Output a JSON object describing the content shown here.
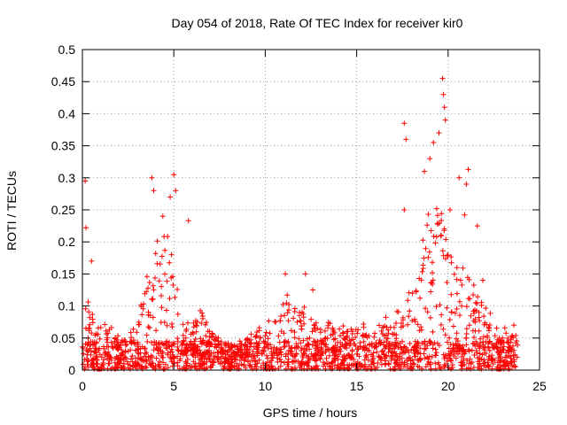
{
  "chart_data": {
    "type": "scatter",
    "title": "Day 054 of 2018, Rate Of TEC Index for receiver kir0",
    "xlabel": "GPS time / hours",
    "ylabel": "ROTI / TECUs",
    "xlim": [
      0,
      25
    ],
    "ylim": [
      0,
      0.5
    ],
    "xticks": [
      0,
      5,
      10,
      15,
      20,
      25
    ],
    "yticks": [
      0,
      0.05,
      0.1,
      0.15,
      0.2,
      0.25,
      0.3,
      0.35,
      0.4,
      0.45,
      0.5
    ],
    "xtick_labels": [
      "0",
      "5",
      "10",
      "15",
      "20",
      "25"
    ],
    "ytick_labels": [
      "0",
      "0.05",
      "0.1",
      "0.15",
      "0.2",
      "0.25",
      "0.3",
      "0.35",
      "0.4",
      "0.45",
      "0.5"
    ],
    "grid": true,
    "marker": "+",
    "color": "#ff0000",
    "data_range_hours": [
      0,
      23.8
    ],
    "notable_points": [
      {
        "x": 0.15,
        "y": 0.295
      },
      {
        "x": 0.2,
        "y": 0.222
      },
      {
        "x": 0.5,
        "y": 0.17
      },
      {
        "x": 3.8,
        "y": 0.3
      },
      {
        "x": 3.9,
        "y": 0.28
      },
      {
        "x": 4.4,
        "y": 0.24
      },
      {
        "x": 4.8,
        "y": 0.27
      },
      {
        "x": 5.0,
        "y": 0.305
      },
      {
        "x": 5.1,
        "y": 0.28
      },
      {
        "x": 5.8,
        "y": 0.233
      },
      {
        "x": 11.1,
        "y": 0.15
      },
      {
        "x": 12.2,
        "y": 0.15
      },
      {
        "x": 12.6,
        "y": 0.125
      },
      {
        "x": 17.6,
        "y": 0.385
      },
      {
        "x": 17.7,
        "y": 0.36
      },
      {
        "x": 17.6,
        "y": 0.25
      },
      {
        "x": 18.7,
        "y": 0.31
      },
      {
        "x": 19.0,
        "y": 0.33
      },
      {
        "x": 19.2,
        "y": 0.355
      },
      {
        "x": 19.5,
        "y": 0.37
      },
      {
        "x": 19.7,
        "y": 0.455
      },
      {
        "x": 19.75,
        "y": 0.43
      },
      {
        "x": 19.8,
        "y": 0.41
      },
      {
        "x": 19.85,
        "y": 0.39
      },
      {
        "x": 20.1,
        "y": 0.25
      },
      {
        "x": 20.6,
        "y": 0.3
      },
      {
        "x": 21.1,
        "y": 0.313
      },
      {
        "x": 21.0,
        "y": 0.29
      },
      {
        "x": 20.9,
        "y": 0.242
      },
      {
        "x": 21.6,
        "y": 0.225
      },
      {
        "x": 21.9,
        "y": 0.14
      },
      {
        "x": 23.6,
        "y": 0.07
      }
    ],
    "envelope_hours": [
      0,
      0.5,
      1,
      1.5,
      2,
      2.5,
      3,
      3.5,
      4,
      4.5,
      5,
      5.5,
      6,
      6.5,
      7,
      7.5,
      8,
      8.5,
      9,
      9.5,
      10,
      10.5,
      11,
      11.5,
      12,
      12.5,
      13,
      13.5,
      14,
      14.5,
      15,
      15.5,
      16,
      16.5,
      17,
      17.5,
      18,
      18.5,
      19,
      19.5,
      20,
      20.5,
      21,
      21.5,
      22,
      22.5,
      23,
      23.8
    ],
    "envelope_typical_max": [
      0.1,
      0.09,
      0.07,
      0.06,
      0.05,
      0.05,
      0.06,
      0.13,
      0.17,
      0.2,
      0.18,
      0.08,
      0.06,
      0.1,
      0.06,
      0.05,
      0.04,
      0.04,
      0.05,
      0.06,
      0.06,
      0.08,
      0.12,
      0.1,
      0.09,
      0.08,
      0.06,
      0.07,
      0.06,
      0.06,
      0.07,
      0.06,
      0.06,
      0.07,
      0.08,
      0.1,
      0.13,
      0.17,
      0.22,
      0.24,
      0.2,
      0.16,
      0.14,
      0.11,
      0.09,
      0.07,
      0.06,
      0.05
    ]
  }
}
